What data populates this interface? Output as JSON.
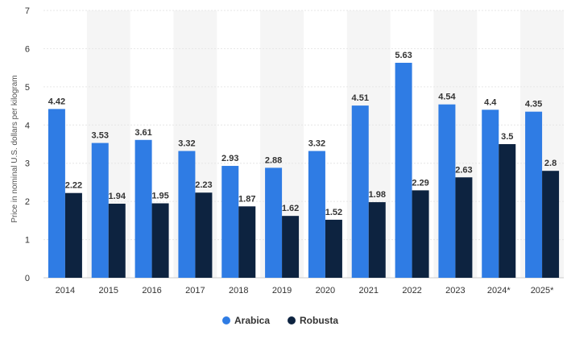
{
  "chart_data": {
    "type": "bar",
    "title": "",
    "xlabel": "",
    "ylabel": "Price in nominal U.S. dollars per kilogram",
    "ylim": [
      0,
      7
    ],
    "yticks": [
      0,
      1,
      2,
      3,
      4,
      5,
      6,
      7
    ],
    "categories": [
      "2014",
      "2015",
      "2016",
      "2017",
      "2018",
      "2019",
      "2020",
      "2021",
      "2022",
      "2023",
      "2024*",
      "2025*"
    ],
    "series": [
      {
        "name": "Arabica",
        "color": "#2f7ce4",
        "values": [
          4.42,
          3.53,
          3.61,
          3.32,
          2.93,
          2.88,
          3.32,
          4.51,
          5.63,
          4.54,
          4.4,
          4.35
        ],
        "labels": [
          "4.42",
          "3.53",
          "3.61",
          "3.32",
          "2.93",
          "2.88",
          "3.32",
          "4.51",
          "5.63",
          "4.54",
          "4.4",
          "4.35"
        ]
      },
      {
        "name": "Robusta",
        "color": "#0d2340",
        "values": [
          2.22,
          1.94,
          1.95,
          2.23,
          1.87,
          1.62,
          1.52,
          1.98,
          2.29,
          2.63,
          3.5,
          2.8
        ],
        "labels": [
          "2.22",
          "1.94",
          "1.95",
          "2.23",
          "1.87",
          "1.62",
          "1.52",
          "1.98",
          "2.29",
          "2.63",
          "3.5",
          "2.8"
        ]
      }
    ],
    "grid": true,
    "legend": "bottom-center",
    "band_color": "#f5f5f5"
  }
}
